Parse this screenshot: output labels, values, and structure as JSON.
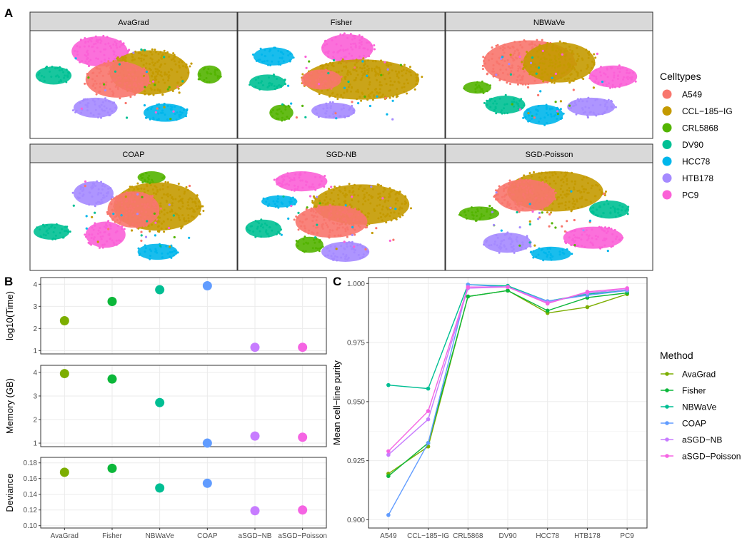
{
  "panel_labels": {
    "a": "A",
    "b": "B",
    "c": "C"
  },
  "colors": {
    "A549": "#F8766D",
    "CCL-185-IG": "#C49A00",
    "CRL5868": "#53B400",
    "DV90": "#00C094",
    "HCC78": "#00B6EB",
    "HTB178": "#A58AFF",
    "PC9": "#FB61D7",
    "AvaGrad": "#7CAE00",
    "Fisher": "#0CB73A",
    "NBWaVe": "#00BE93",
    "COAP": "#619CFF",
    "aSGD-NB": "#C77CFF",
    "aSGD-Poisson": "#F564E3",
    "strip": "#D9D9D9",
    "grid": "#EBEBEB"
  },
  "tsne": {
    "facets": [
      "AvaGrad",
      "Fisher",
      "NBWaVe",
      "COAP",
      "SGD-NB",
      "SGD-Poisson"
    ],
    "legend_title": "Celltypes",
    "celltypes": [
      "A549",
      "CCL−185−IG",
      "CRL5868",
      "DV90",
      "HCC78",
      "HTB178",
      "PC9"
    ],
    "celltype_keys": [
      "A549",
      "CCL-185-IG",
      "CRL5868",
      "DV90",
      "HCC78",
      "HTB178",
      "PC9"
    ]
  },
  "chart_data": [
    {
      "type": "scatter",
      "title": "",
      "ylabel": "log10(Time)",
      "categories": [
        "AvaGrad",
        "Fisher",
        "NBWaVe",
        "COAP",
        "aSGD−NB",
        "aSGD−Poisson"
      ],
      "values": [
        2.35,
        3.22,
        3.75,
        3.93,
        1.15,
        1.15
      ],
      "ylim": [
        0.85,
        4.3
      ],
      "yticks": [
        1,
        2,
        3,
        4
      ],
      "ytick_labels": [
        "1",
        "2",
        "3",
        "4"
      ]
    },
    {
      "type": "scatter",
      "title": "",
      "ylabel": "Memory (GB)",
      "categories": [
        "AvaGrad",
        "Fisher",
        "NBWaVe",
        "COAP",
        "aSGD−NB",
        "aSGD−Poisson"
      ],
      "values": [
        3.95,
        3.72,
        2.72,
        1.0,
        1.3,
        1.25
      ],
      "ylim": [
        0.85,
        4.3
      ],
      "yticks": [
        1,
        2,
        3,
        4
      ],
      "ytick_labels": [
        "1",
        "2",
        "3",
        "4"
      ]
    },
    {
      "type": "scatter",
      "title": "",
      "ylabel": "Deviance",
      "xlabels": [
        "AvaGrad",
        "Fisher",
        "NBWaVe",
        "COAP",
        "aSGD−NB",
        "aSGD−Poisson"
      ],
      "categories": [
        "AvaGrad",
        "Fisher",
        "NBWaVe",
        "COAP",
        "aSGD−NB",
        "aSGD−Poisson"
      ],
      "values": [
        0.168,
        0.173,
        0.148,
        0.154,
        0.119,
        0.12
      ],
      "ylim": [
        0.097,
        0.187
      ],
      "yticks": [
        0.1,
        0.12,
        0.14,
        0.16,
        0.18
      ],
      "ytick_labels": [
        "0.10",
        "0.12",
        "0.14",
        "0.16",
        "0.18"
      ]
    },
    {
      "type": "line",
      "title": "",
      "xlabel": "",
      "ylabel": "Mean cell−line purity",
      "categories": [
        "A549",
        "CCL−185−IG",
        "CRL5868",
        "DV90",
        "HCC78",
        "HTB178",
        "PC9"
      ],
      "ylim": [
        0.8965,
        1.0025
      ],
      "yticks": [
        0.9,
        0.925,
        0.95,
        0.975,
        1.0
      ],
      "ytick_labels": [
        "0.900",
        "0.925",
        "0.950",
        "0.975",
        "1.000"
      ],
      "legend_title": "Method",
      "series": [
        {
          "name": "AvaGrad",
          "key": "AvaGrad",
          "values": [
            0.9195,
            0.931,
            0.9945,
            0.997,
            0.9875,
            0.99,
            0.9955
          ]
        },
        {
          "name": "Fisher",
          "key": "Fisher",
          "values": [
            0.9185,
            0.9325,
            0.9945,
            0.997,
            0.9885,
            0.994,
            0.996
          ]
        },
        {
          "name": "NBWaVe",
          "key": "NBWaVe",
          "values": [
            0.957,
            0.9555,
            0.9995,
            0.999,
            0.9925,
            0.9955,
            0.997
          ]
        },
        {
          "name": "COAP",
          "key": "COAP",
          "values": [
            0.902,
            0.9325,
            0.9995,
            0.9985,
            0.9925,
            0.995,
            0.997
          ]
        },
        {
          "name": "aSGD−NB",
          "key": "aSGD-NB",
          "values": [
            0.9275,
            0.9425,
            0.998,
            0.9985,
            0.992,
            0.996,
            0.9975
          ]
        },
        {
          "name": "aSGD−Poisson",
          "key": "aSGD-Poisson",
          "values": [
            0.929,
            0.946,
            0.9985,
            0.9985,
            0.9915,
            0.9965,
            0.998
          ]
        }
      ]
    }
  ]
}
